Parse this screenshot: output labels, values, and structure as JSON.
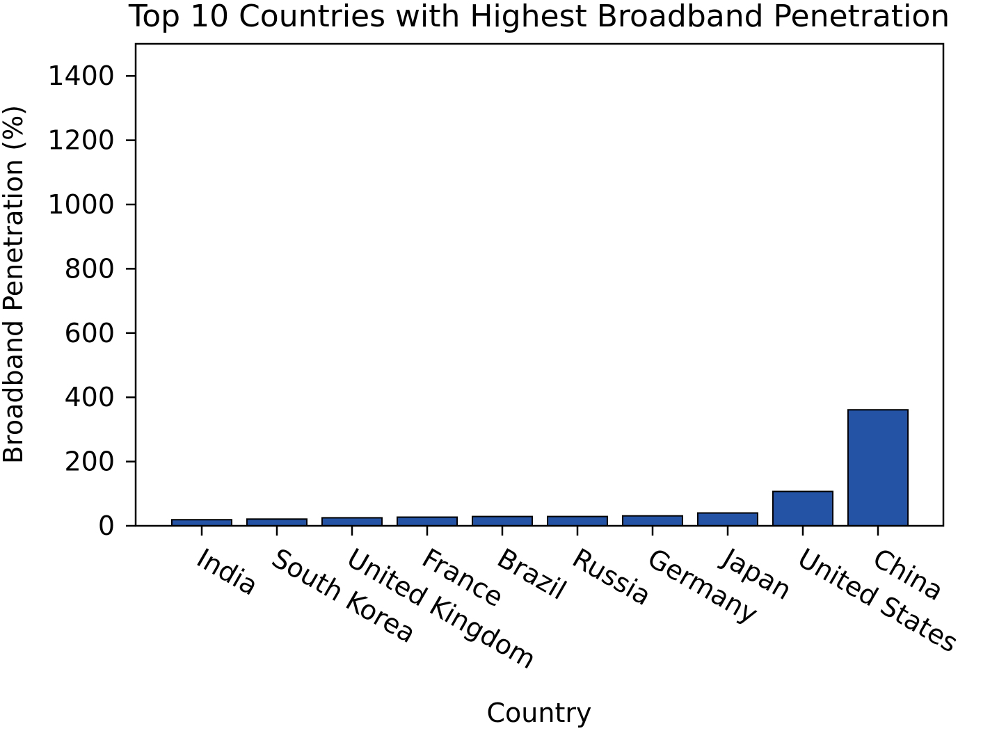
{
  "chart_data": {
    "type": "bar",
    "title": "Top 10 Countries with Highest Broadband Penetration",
    "xlabel": "Country",
    "ylabel": "Broadband Penetration (%)",
    "categories": [
      "India",
      "South Korea",
      "United Kingdom",
      "France",
      "Brazil",
      "Russia",
      "Germany",
      "Japan",
      "United States",
      "China"
    ],
    "values": [
      19,
      21,
      25,
      27,
      29,
      29,
      31,
      40,
      107,
      361
    ],
    "ylim": [
      0,
      1500
    ],
    "yticks": [
      0,
      200,
      400,
      600,
      800,
      1000,
      1200,
      1400
    ],
    "grid": false,
    "legend": "none",
    "colors": {
      "bar_fill": "#2453a6",
      "bar_edge": "#000000",
      "axis": "#000000",
      "background": "#ffffff"
    }
  }
}
